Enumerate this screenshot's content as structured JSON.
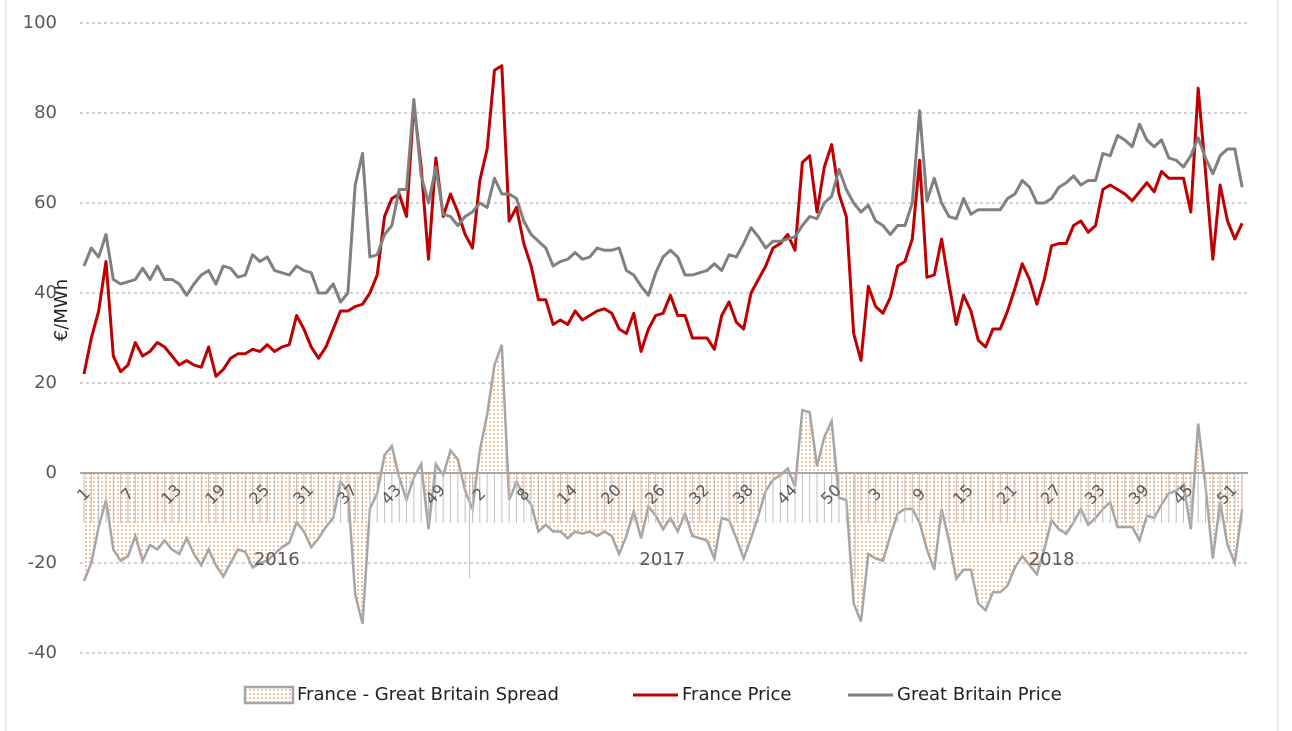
{
  "chart_data": {
    "type": "line",
    "y_label": "€/MWh",
    "categories": [
      "1",
      null,
      null,
      null,
      null,
      null,
      "7",
      null,
      null,
      null,
      null,
      null,
      "13",
      null,
      null,
      null,
      null,
      null,
      "19",
      null,
      null,
      null,
      null,
      null,
      "25",
      null,
      null,
      null,
      null,
      null,
      "31",
      null,
      null,
      null,
      null,
      null,
      "37",
      null,
      null,
      null,
      null,
      null,
      "43",
      null,
      null,
      null,
      null,
      null,
      "49",
      null,
      null,
      null,
      null,
      null,
      "2",
      null,
      null,
      null,
      null,
      null,
      "8",
      null,
      null,
      null,
      null,
      null,
      "14",
      null,
      null,
      null,
      null,
      null,
      "20",
      null,
      null,
      null,
      null,
      null,
      "26",
      null,
      null,
      null,
      null,
      null,
      "32",
      null,
      null,
      null,
      null,
      null,
      "38",
      null,
      null,
      null,
      null,
      null,
      "44",
      null,
      null,
      null,
      null,
      null,
      "50",
      null,
      null,
      null,
      null,
      null,
      "3",
      null,
      null,
      null,
      null,
      null,
      "9",
      null,
      null,
      null,
      null,
      null,
      "15",
      null,
      null,
      null,
      null,
      null,
      "21",
      null,
      null,
      null,
      null,
      null,
      "27",
      null,
      null,
      null,
      null,
      null,
      "33",
      null,
      null,
      null,
      null,
      null,
      "39",
      null,
      null,
      null,
      null,
      null,
      "45",
      null,
      null,
      null,
      null,
      null,
      "51",
      null,
      null
    ],
    "groups": [
      "2016",
      "2017",
      "2018"
    ],
    "series": [
      {
        "name": "France - Great Britain Spread",
        "kind": "area",
        "color": "#f4b183",
        "line_color": "#a6a6a6",
        "values": [
          -24,
          -20,
          -12,
          -6,
          -17,
          -19.5,
          -18.5,
          -14,
          -19.5,
          -16,
          -17,
          -15,
          -17,
          -18,
          -14.5,
          -18,
          -20.5,
          -17,
          -20.5,
          -23,
          -20,
          -17,
          -17.5,
          -21,
          -20,
          -19.5,
          -18,
          -16.5,
          -15.5,
          -11,
          -13,
          -16.5,
          -14.5,
          -12,
          -10,
          -2,
          -4,
          -27,
          -33.5,
          -8,
          -4.5,
          4,
          6,
          -1,
          -6,
          -1,
          2,
          -12.5,
          2,
          -0.5,
          5,
          3,
          -4,
          -8,
          5,
          13,
          24,
          28.5,
          -6,
          -2,
          -5,
          -7,
          -13,
          -11.5,
          -13,
          -13,
          -14.5,
          -13,
          -13.5,
          -13,
          -14,
          -13,
          -14,
          -18,
          -14,
          -8.5,
          -14.5,
          -7.5,
          -9.5,
          -12.5,
          -10,
          -13,
          -9,
          -14,
          -14.5,
          -15,
          -19,
          -10,
          -10.5,
          -14.5,
          -19,
          -14.5,
          -9.5,
          -4,
          -1.5,
          -0.5,
          1,
          -3,
          14,
          13.5,
          1.5,
          8,
          11.5,
          -5.5,
          -6,
          -29,
          -33,
          -18,
          -19,
          -19.5,
          -14,
          -9,
          -8,
          -8,
          -11,
          -17,
          -21.5,
          -8,
          -15,
          -23.5,
          -21.5,
          -21.5,
          -29,
          -30.5,
          -26.5,
          -26.5,
          -25,
          -21,
          -18.5,
          -20.5,
          -22.5,
          -17,
          -10.5,
          -12.5,
          -13.5,
          -11,
          -8,
          -11.5,
          -10,
          -8,
          -6.5,
          -12,
          -12,
          -12,
          -15,
          -9.5,
          -10,
          -7,
          -4.5,
          -4,
          -2.5,
          -12.5,
          11,
          -3,
          -19,
          -6.5,
          -16,
          -20,
          -8
        ]
      },
      {
        "name": "France Price",
        "kind": "line",
        "color": "#c00000",
        "values": [
          22,
          30,
          36,
          47,
          26,
          22.5,
          24,
          29,
          26,
          27,
          29,
          28,
          26,
          24,
          25,
          24,
          23.5,
          28,
          21.5,
          23,
          25.5,
          26.5,
          26.5,
          27.5,
          27,
          28.5,
          27,
          28,
          28.5,
          35,
          32,
          28,
          25.5,
          28,
          32,
          36,
          36,
          37,
          37.5,
          40,
          44,
          57,
          61,
          62,
          57,
          82,
          68,
          47.5,
          70,
          57,
          62,
          58,
          53,
          50,
          65,
          72,
          89.5,
          90.5,
          56,
          59,
          51,
          46,
          38.5,
          38.5,
          33,
          34,
          33,
          36,
          34,
          35,
          36,
          36.5,
          35.5,
          32,
          31,
          35.5,
          27,
          32,
          35,
          35.5,
          39.5,
          35,
          35,
          30,
          30,
          30,
          27.5,
          35,
          38,
          33.5,
          32,
          40,
          43,
          46,
          50,
          51,
          53,
          49.5,
          69,
          70.5,
          58,
          68,
          73,
          62,
          57,
          31,
          25,
          41.5,
          37,
          35.5,
          39,
          46,
          47,
          52,
          69.5,
          43.5,
          44,
          52,
          42,
          33,
          39.5,
          36,
          29.5,
          28,
          32,
          32,
          36,
          41,
          46.5,
          43,
          37.5,
          43,
          50.5,
          51,
          51,
          55,
          56,
          53.5,
          55,
          63,
          64,
          63,
          62,
          60.5,
          62.5,
          64.5,
          62.5,
          67,
          65.5,
          65.5,
          65.5,
          58,
          85.5,
          67,
          47.5,
          64,
          56,
          52,
          55.5
        ]
      },
      {
        "name": "Great Britain Price",
        "kind": "line",
        "color": "#808080",
        "values": [
          46,
          50,
          48,
          53,
          43,
          42,
          42.5,
          43,
          45.5,
          43,
          46,
          43,
          43,
          42,
          39.5,
          42,
          44,
          45,
          42,
          46,
          45.5,
          43.5,
          44,
          48.5,
          47,
          48,
          45,
          44.5,
          44,
          46,
          45,
          44.5,
          40,
          40,
          42,
          38,
          40,
          64,
          71,
          48,
          48.5,
          53,
          55,
          63,
          63,
          83,
          66,
          60,
          68,
          57.5,
          57,
          55,
          57,
          58,
          60,
          59,
          65.5,
          62,
          62,
          61,
          56,
          53,
          51.5,
          50,
          46,
          47,
          47.5,
          49,
          47.5,
          48,
          50,
          49.5,
          49.5,
          50,
          45,
          44,
          41.5,
          39.5,
          44.5,
          48,
          49.5,
          48,
          44,
          44,
          44.5,
          45,
          46.5,
          45,
          48.5,
          48,
          51,
          54.5,
          52.5,
          50,
          51.5,
          51.5,
          52,
          52.5,
          55,
          57,
          56.5,
          60,
          61.5,
          67.5,
          63,
          60,
          58,
          59.5,
          56,
          55,
          53,
          55,
          55,
          60,
          80.5,
          60.5,
          65.5,
          60,
          57,
          56.5,
          61,
          57.5,
          58.5,
          58.5,
          58.5,
          58.5,
          61,
          62,
          65,
          63.5,
          60,
          60,
          61,
          63.5,
          64.5,
          66,
          64,
          65,
          65,
          71,
          70.5,
          75,
          74,
          72.5,
          77.5,
          74,
          72.5,
          74,
          70,
          69.5,
          68,
          70.5,
          74.5,
          70,
          66.5,
          70.5,
          72,
          72,
          63.5
        ]
      }
    ],
    "ylim": [
      -40,
      100
    ],
    "yticks": [
      -40,
      -20,
      0,
      20,
      40,
      60,
      80,
      100
    ],
    "grid": true,
    "legend": "bottom"
  }
}
